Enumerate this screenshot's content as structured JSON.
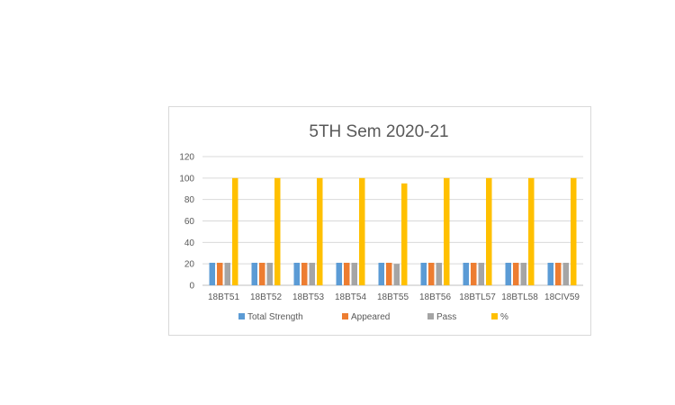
{
  "chart_data": {
    "type": "bar",
    "title": "5TH  Sem  2020-21",
    "xlabel": "",
    "ylabel": "",
    "ylim": [
      0,
      120
    ],
    "yticks": [
      0,
      20,
      40,
      60,
      80,
      100,
      120
    ],
    "grid": true,
    "legend_position": "bottom",
    "categories": [
      "18BT51",
      "18BT52",
      "18BT53",
      "18BT54",
      "18BT55",
      "18BT56",
      "18BTL57",
      "18BTL58",
      "18CIV59"
    ],
    "series": [
      {
        "name": "Total Strength",
        "color": "#5b9bd5",
        "values": [
          21,
          21,
          21,
          21,
          21,
          21,
          21,
          21,
          21
        ]
      },
      {
        "name": "Appeared",
        "color": "#ed7d31",
        "values": [
          21,
          21,
          21,
          21,
          21,
          21,
          21,
          21,
          21
        ]
      },
      {
        "name": "Pass",
        "color": "#a5a5a5",
        "values": [
          21,
          21,
          21,
          21,
          20,
          21,
          21,
          21,
          21
        ]
      },
      {
        "name": "%",
        "color": "#ffc000",
        "values": [
          100,
          100,
          100,
          100,
          95,
          100,
          100,
          100,
          100
        ]
      }
    ]
  }
}
